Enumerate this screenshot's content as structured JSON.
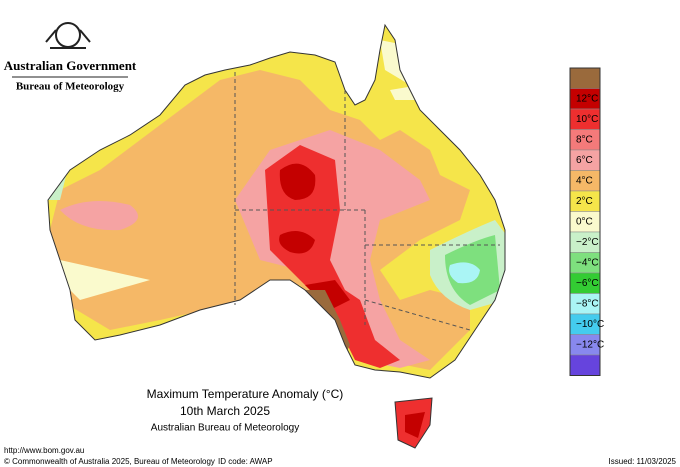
{
  "header": {
    "government": "Australian Government",
    "agency": "Bureau of Meteorology"
  },
  "map": {
    "title": "Maximum Temperature Anomaly (°C)",
    "date": "10th March 2025",
    "source": "Australian Bureau of Meteorology"
  },
  "legend": {
    "colors": [
      "#9a6a3c",
      "#c40000",
      "#ee2f2f",
      "#f47a7a",
      "#f5a3a3",
      "#f5b867",
      "#f5e54a",
      "#fafacd",
      "#c9f0c9",
      "#7ee07e",
      "#33cc33",
      "#aaf5f5",
      "#44ccee",
      "#8888ee",
      "#6644dd"
    ],
    "labels": [
      "12°C",
      "10°C",
      "8°C",
      "6°C",
      "4°C",
      "2°C",
      "0°C",
      "−2°C",
      "−4°C",
      "−6°C",
      "−8°C",
      "−10°C",
      "−12°C"
    ]
  },
  "footer": {
    "url": "http://www.bom.gov.au",
    "copyright": "© Commonwealth of Australia 2025, Bureau of Meteorology",
    "id_code": "ID code: AWAP",
    "issued": "Issued: 11/03/2025"
  }
}
